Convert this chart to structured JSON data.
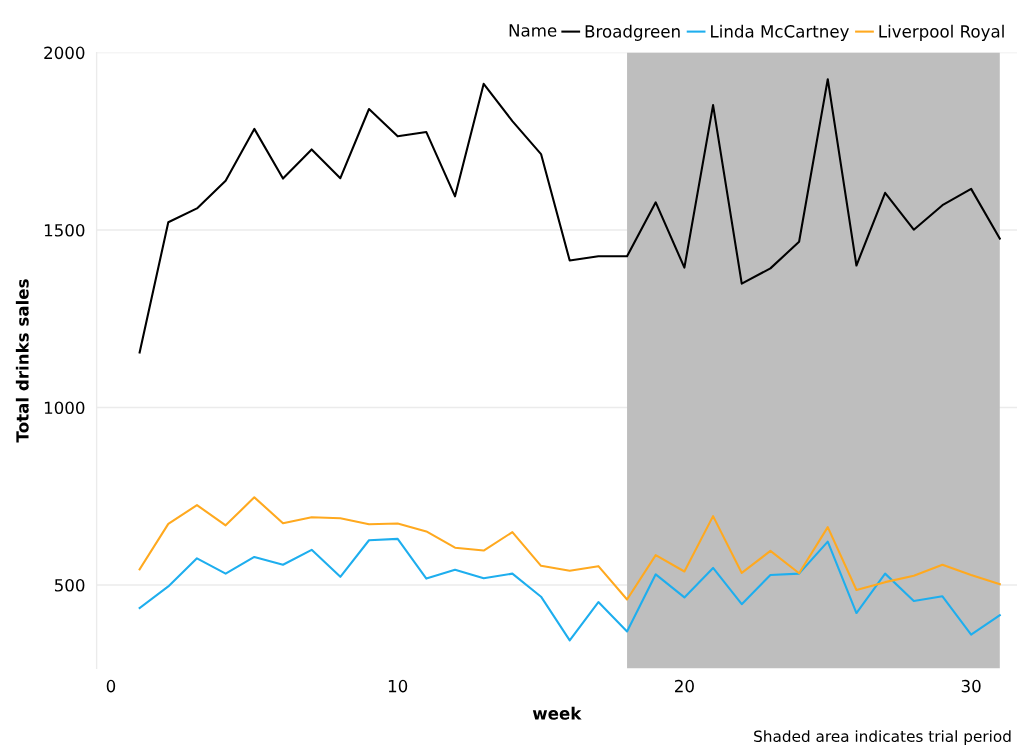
{
  "chart_data": {
    "type": "line",
    "xlabel": "week",
    "ylabel": "Total drinks sales",
    "legend_title": "Name",
    "x": [
      1,
      2,
      3,
      4,
      5,
      6,
      7,
      8,
      9,
      10,
      11,
      12,
      13,
      14,
      15,
      16,
      17,
      18,
      19,
      20,
      21,
      22,
      23,
      24,
      25,
      26,
      27,
      28,
      29,
      30,
      31
    ],
    "series": [
      {
        "name": "Broadgreen",
        "color": "#000000",
        "values": [
          1155,
          1522,
          1561,
          1639,
          1785,
          1645,
          1727,
          1646,
          1841,
          1764,
          1776,
          1595,
          1912,
          1807,
          1714,
          1414,
          1426,
          1426,
          1578,
          1394,
          1852,
          1349,
          1392,
          1467,
          1925,
          1400,
          1605,
          1501,
          1570,
          1616,
          1476
        ]
      },
      {
        "name": "Linda McCartney",
        "color": "#1eaeee",
        "values": [
          435,
          496,
          575,
          532,
          579,
          557,
          599,
          523,
          626,
          630,
          518,
          543,
          519,
          532,
          467,
          344,
          452,
          369,
          530,
          465,
          548,
          446,
          528,
          532,
          622,
          421,
          532,
          455,
          468,
          360,
          415
        ]
      },
      {
        "name": "Liverpool Royal",
        "color": "#ffa91f",
        "values": [
          544,
          672,
          725,
          668,
          747,
          674,
          691,
          688,
          671,
          673,
          651,
          605,
          597,
          649,
          554,
          540,
          553,
          459,
          584,
          538,
          694,
          534,
          596,
          533,
          663,
          486,
          508,
          526,
          557,
          528,
          502
        ]
      }
    ],
    "xlim": [
      -0.5,
      31.6
    ],
    "xticks": [
      0,
      10,
      20,
      30
    ],
    "ylim": [
      265,
      2000
    ],
    "yticks": [
      500,
      1000,
      1500,
      2000
    ],
    "bands": [
      {
        "axis": "x",
        "from": 18,
        "to": 31,
        "color": "#bebebe"
      }
    ],
    "grid": "y",
    "legend": "top right",
    "line_style": "solid",
    "marker": "none",
    "annotations": [
      "Shaded area indicates trial period"
    ]
  }
}
